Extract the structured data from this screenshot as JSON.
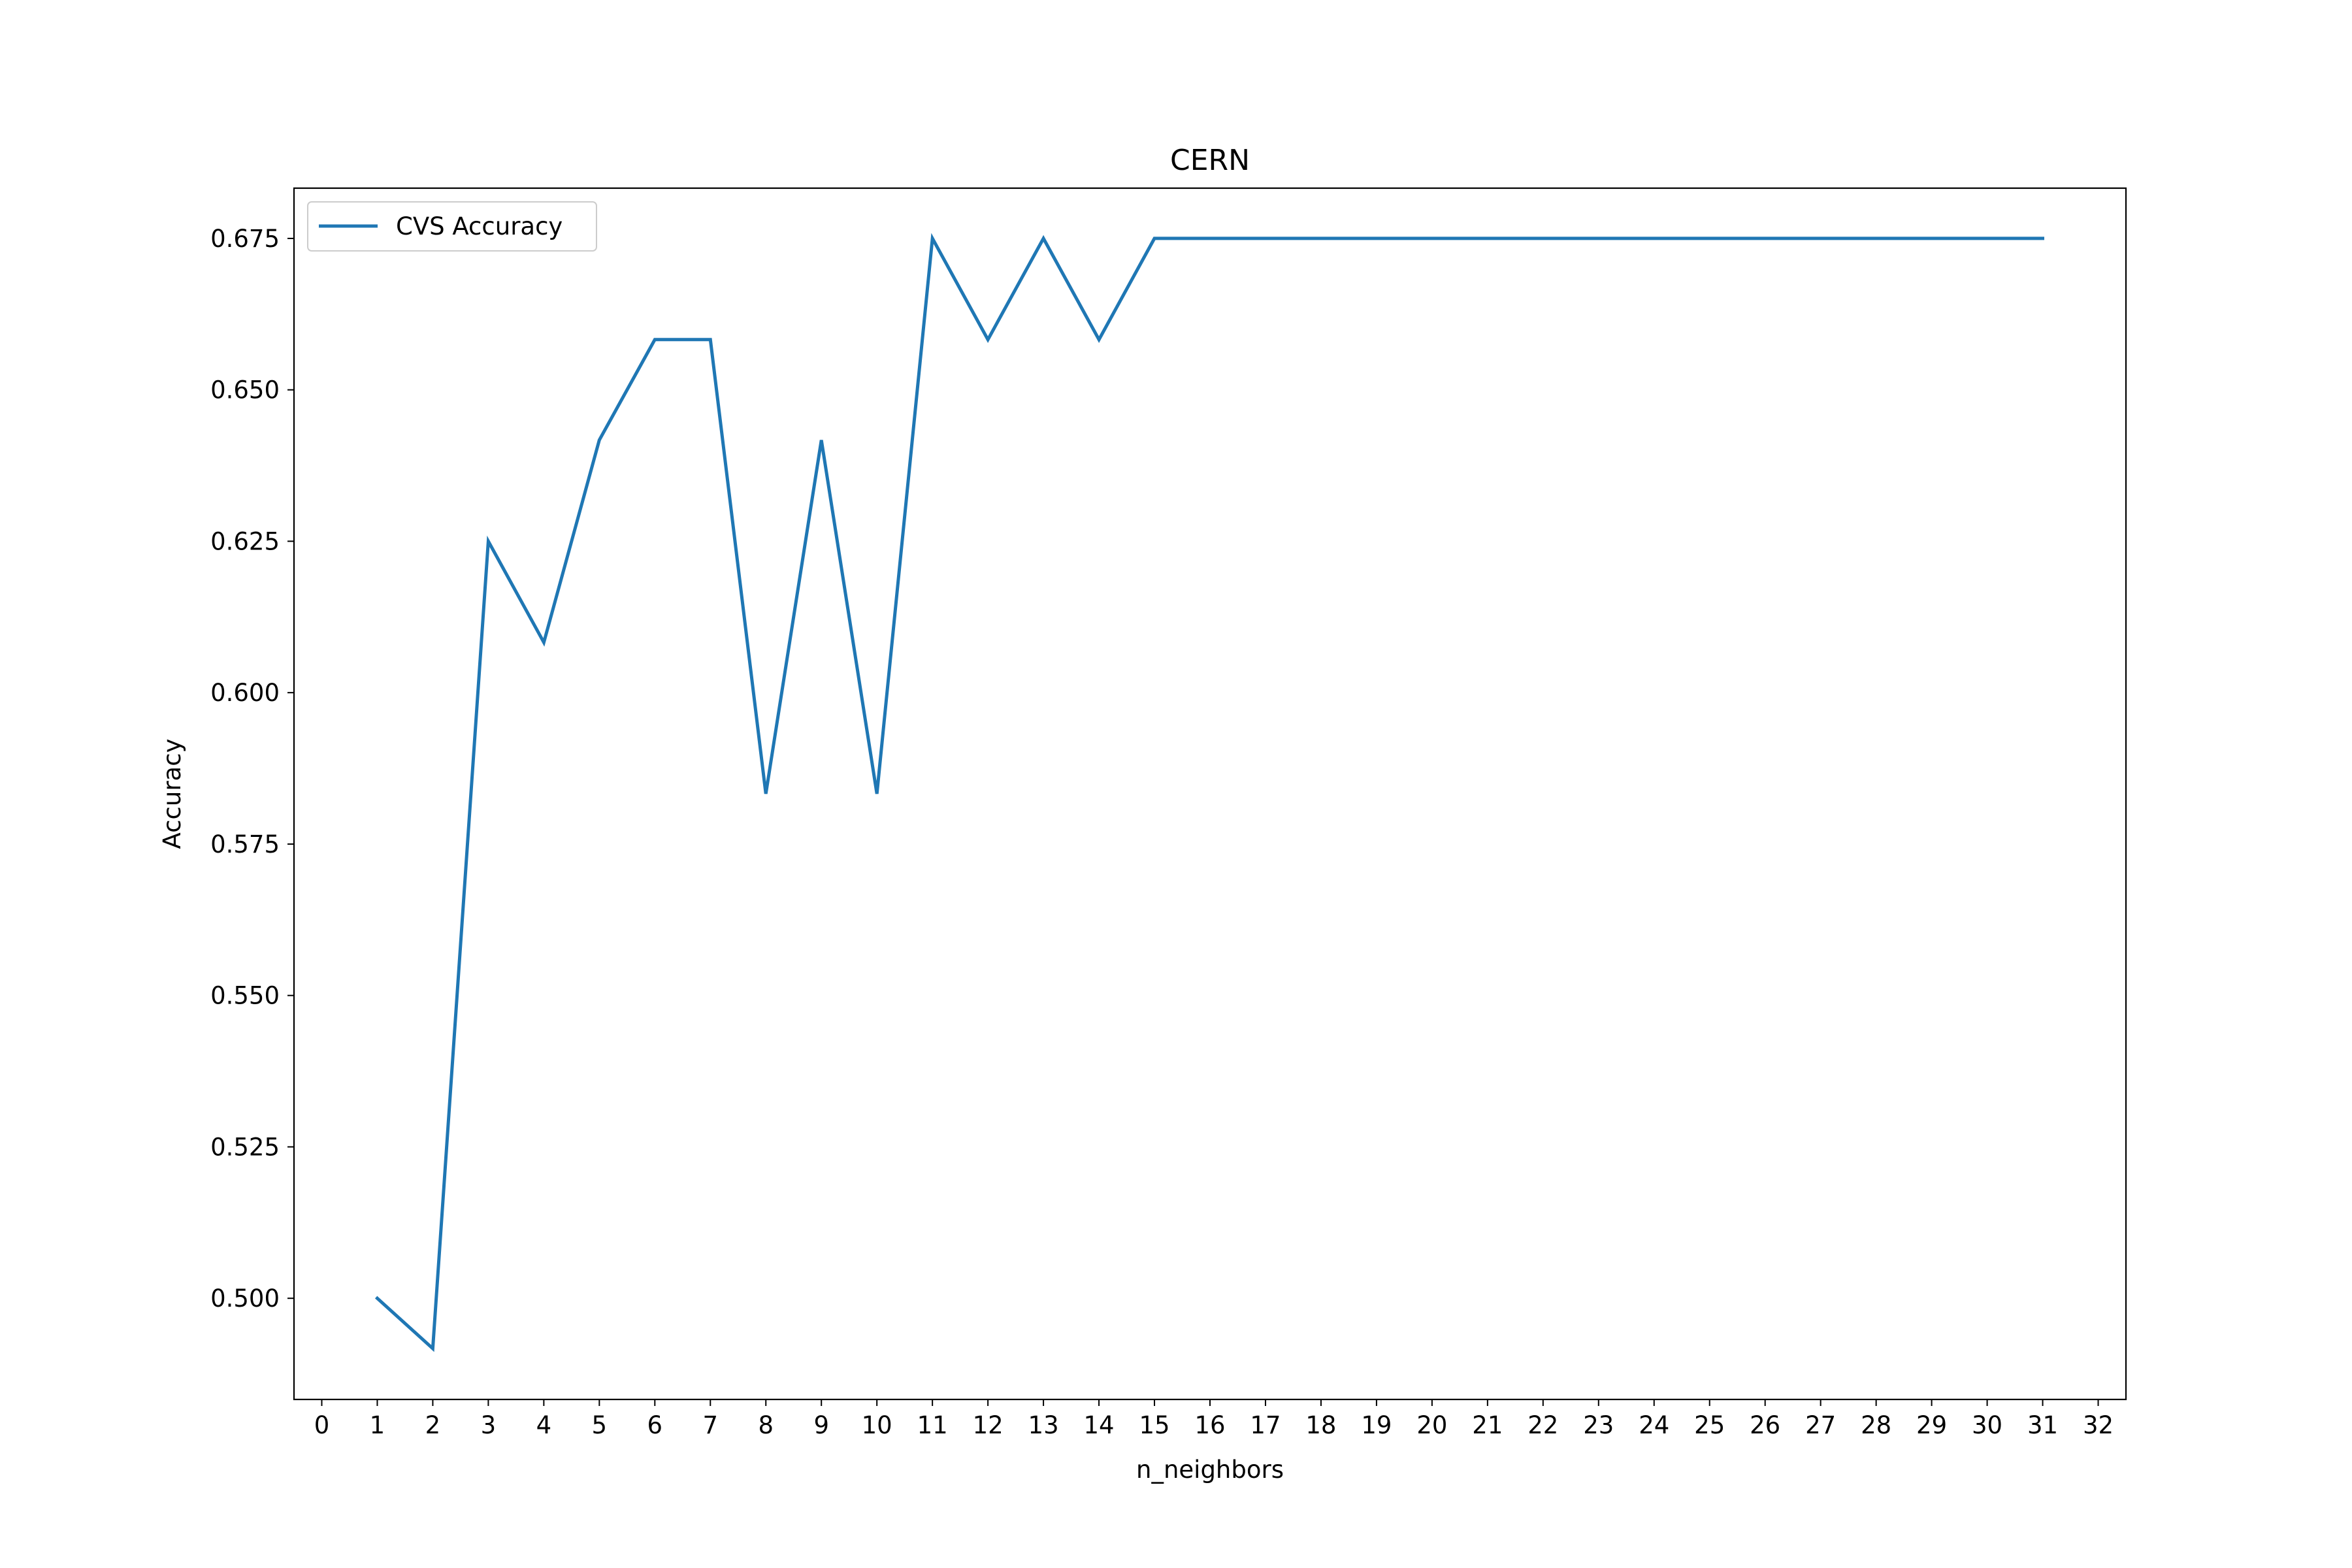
{
  "chart_data": {
    "type": "line",
    "title": "CERN",
    "xlabel": "n_neighbors",
    "ylabel": "Accuracy",
    "xlim": [
      -0.5,
      32.5
    ],
    "ylim": [
      0.4833,
      0.6833
    ],
    "x_ticks": [
      0,
      1,
      2,
      3,
      4,
      5,
      6,
      7,
      8,
      9,
      10,
      11,
      12,
      13,
      14,
      15,
      16,
      17,
      18,
      19,
      20,
      21,
      22,
      23,
      24,
      25,
      26,
      27,
      28,
      29,
      30,
      31,
      32
    ],
    "y_ticks": [
      0.5,
      0.525,
      0.55,
      0.575,
      0.6,
      0.625,
      0.65,
      0.675
    ],
    "y_tick_labels": [
      "0.500",
      "0.525",
      "0.550",
      "0.575",
      "0.600",
      "0.625",
      "0.650",
      "0.675"
    ],
    "grid": false,
    "legend_position": "upper-left",
    "series": [
      {
        "name": "CVS Accuracy",
        "color": "#1f77b4",
        "x": [
          1,
          2,
          3,
          4,
          5,
          6,
          7,
          8,
          9,
          10,
          11,
          12,
          13,
          14,
          15,
          16,
          17,
          18,
          19,
          20,
          21,
          22,
          23,
          24,
          25,
          26,
          27,
          28,
          29,
          30,
          31
        ],
        "y": [
          0.5,
          0.4917,
          0.625,
          0.6083,
          0.6417,
          0.6583,
          0.6583,
          0.5833,
          0.6417,
          0.5833,
          0.675,
          0.6583,
          0.675,
          0.6583,
          0.675,
          0.675,
          0.675,
          0.675,
          0.675,
          0.675,
          0.675,
          0.675,
          0.675,
          0.675,
          0.675,
          0.675,
          0.675,
          0.675,
          0.675,
          0.675,
          0.675
        ]
      }
    ]
  }
}
